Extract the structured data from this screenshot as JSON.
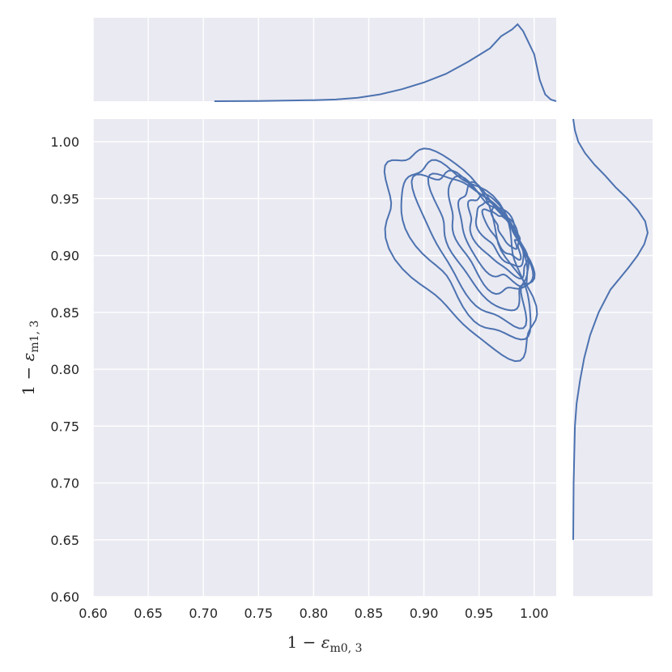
{
  "chart_data": {
    "type": "kde_joint",
    "xlabel": {
      "prefix": "1 − ",
      "symbol": "ε",
      "subscript": "m0, 3"
    },
    "ylabel": {
      "prefix": "1 − ",
      "symbol": "ε",
      "subscript": "m1, 3"
    },
    "xlim": [
      0.6,
      1.02
    ],
    "ylim": [
      0.6,
      1.02
    ],
    "xticks": [
      0.6,
      0.65,
      0.7,
      0.75,
      0.8,
      0.85,
      0.9,
      0.95,
      1.0
    ],
    "yticks": [
      0.6,
      0.65,
      0.7,
      0.75,
      0.8,
      0.85,
      0.9,
      0.95,
      1.0
    ],
    "xtick_labels": [
      "0.60",
      "0.65",
      "0.70",
      "0.75",
      "0.80",
      "0.85",
      "0.90",
      "0.95",
      "1.00"
    ],
    "ytick_labels": [
      "0.60",
      "0.65",
      "0.70",
      "0.75",
      "0.80",
      "0.85",
      "0.90",
      "0.95",
      "1.00"
    ],
    "grid": true,
    "line_color": "#4c72b0",
    "background_color": "#eaeaf2",
    "grid_color": "#ffffff",
    "contour_levels": [
      {
        "cx": 0.93,
        "cy": 0.905,
        "rx": 0.095,
        "ry": 0.115,
        "angle": 45,
        "rough": 0.02
      },
      {
        "cx": 0.94,
        "cy": 0.908,
        "rx": 0.082,
        "ry": 0.098,
        "angle": 45,
        "rough": 0.016
      },
      {
        "cx": 0.947,
        "cy": 0.91,
        "rx": 0.072,
        "ry": 0.085,
        "angle": 45,
        "rough": 0.013
      },
      {
        "cx": 0.953,
        "cy": 0.912,
        "rx": 0.062,
        "ry": 0.074,
        "angle": 45,
        "rough": 0.011
      },
      {
        "cx": 0.958,
        "cy": 0.914,
        "rx": 0.053,
        "ry": 0.063,
        "angle": 45,
        "rough": 0.01
      },
      {
        "cx": 0.962,
        "cy": 0.916,
        "rx": 0.045,
        "ry": 0.054,
        "angle": 45,
        "rough": 0.008
      },
      {
        "cx": 0.966,
        "cy": 0.918,
        "rx": 0.037,
        "ry": 0.045,
        "angle": 45,
        "rough": 0.007
      },
      {
        "cx": 0.969,
        "cy": 0.92,
        "rx": 0.03,
        "ry": 0.036,
        "angle": 45,
        "rough": 0.006
      },
      {
        "cx": 0.972,
        "cy": 0.921,
        "rx": 0.022,
        "ry": 0.028,
        "angle": 45,
        "rough": 0.005
      },
      {
        "cx": 0.975,
        "cy": 0.922,
        "rx": 0.014,
        "ry": 0.019,
        "angle": 45,
        "rough": 0.004
      }
    ],
    "marginal_x": {
      "x": [
        0.71,
        0.75,
        0.8,
        0.82,
        0.84,
        0.86,
        0.88,
        0.9,
        0.92,
        0.94,
        0.95,
        0.96,
        0.97,
        0.98,
        0.985,
        0.99,
        1.0,
        1.005,
        1.01,
        1.015,
        1.02
      ],
      "density": [
        0.0,
        0.003,
        0.012,
        0.02,
        0.04,
        0.08,
        0.14,
        0.22,
        0.32,
        0.46,
        0.54,
        0.62,
        0.76,
        0.84,
        0.9,
        0.82,
        0.55,
        0.25,
        0.08,
        0.02,
        0.0
      ]
    },
    "marginal_y": {
      "y": [
        0.65,
        0.7,
        0.75,
        0.77,
        0.79,
        0.81,
        0.83,
        0.85,
        0.87,
        0.88,
        0.89,
        0.9,
        0.91,
        0.92,
        0.93,
        0.94,
        0.95,
        0.96,
        0.97,
        0.98,
        0.99,
        1.0,
        1.01,
        1.02
      ],
      "density": [
        0.0,
        0.005,
        0.02,
        0.04,
        0.08,
        0.13,
        0.2,
        0.3,
        0.44,
        0.55,
        0.66,
        0.76,
        0.84,
        0.88,
        0.85,
        0.76,
        0.64,
        0.5,
        0.38,
        0.25,
        0.14,
        0.06,
        0.02,
        0.0
      ]
    }
  }
}
